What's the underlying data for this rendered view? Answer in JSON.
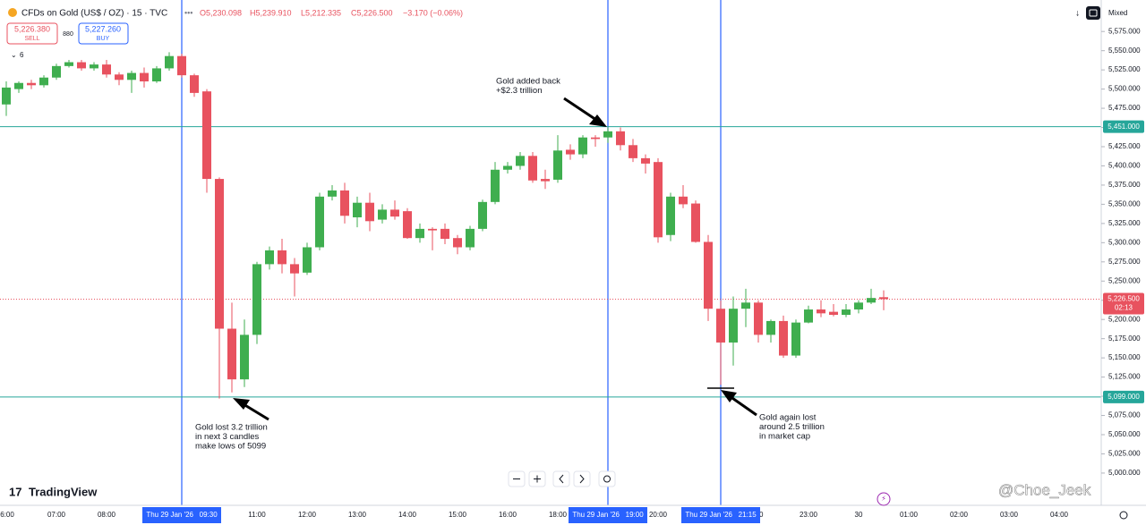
{
  "header": {
    "symbol": "CFDs on Gold (US$ / OZ) · 15 · TVC",
    "open": "O5,230.098",
    "high": "H5,239.910",
    "low": "L5,212.335",
    "close": "C5,226.500",
    "change": "−3.170 (−0.06%)",
    "sell_price": "5,226.380",
    "sell": "SELL",
    "spread": "880",
    "buy_price": "5,227.260",
    "buy": "BUY",
    "indicators": "6",
    "mode": "Mixed",
    "logo": "TradingView",
    "watermark": "@Choe_Jeek"
  },
  "chart_data": {
    "type": "candlestick",
    "up_color": "#3fae4f",
    "down_color": "#e8525f",
    "series": {
      "open": [
        5480,
        5500,
        5508,
        5505,
        5515,
        5530,
        5535,
        5527,
        5532,
        5519,
        5512,
        5521,
        5510,
        5527,
        5543,
        5518,
        5497,
        5383,
        5188,
        5122,
        5180,
        5272,
        5290,
        5272,
        5261,
        5294,
        5360,
        5368,
        5333,
        5352,
        5330,
        5343,
        5341,
        5306,
        5318,
        5318,
        5306,
        5294,
        5318,
        5353,
        5395,
        5400,
        5413,
        5383,
        5382,
        5421,
        5415,
        5437,
        5437,
        5445,
        5427,
        5410,
        5405,
        5310,
        5360,
        5351,
        5301,
        5214,
        5170,
        5214,
        5222,
        5180,
        5198,
        5153,
        5196,
        5213,
        5210,
        5206,
        5213,
        5222,
        5229
      ],
      "high": [
        5510,
        5510,
        5512,
        5518,
        5533,
        5538,
        5538,
        5535,
        5538,
        5522,
        5524,
        5528,
        5530,
        5548,
        5546,
        5520,
        5500,
        5385,
        5222,
        5200,
        5275,
        5295,
        5305,
        5280,
        5300,
        5365,
        5375,
        5378,
        5360,
        5365,
        5350,
        5355,
        5345,
        5325,
        5320,
        5325,
        5310,
        5322,
        5356,
        5405,
        5405,
        5418,
        5418,
        5395,
        5440,
        5428,
        5440,
        5440,
        5450,
        5450,
        5435,
        5415,
        5410,
        5365,
        5375,
        5355,
        5310,
        5225,
        5230,
        5240,
        5225,
        5200,
        5205,
        5200,
        5218,
        5225,
        5220,
        5220,
        5225,
        5240,
        5238
      ],
      "low": [
        5465,
        5495,
        5500,
        5502,
        5512,
        5528,
        5524,
        5524,
        5515,
        5505,
        5495,
        5502,
        5508,
        5524,
        5515,
        5490,
        5365,
        5097,
        5105,
        5112,
        5168,
        5265,
        5260,
        5230,
        5258,
        5290,
        5355,
        5325,
        5320,
        5315,
        5325,
        5330,
        5305,
        5300,
        5290,
        5298,
        5285,
        5290,
        5315,
        5350,
        5390,
        5395,
        5378,
        5370,
        5378,
        5408,
        5410,
        5425,
        5430,
        5420,
        5405,
        5390,
        5300,
        5302,
        5345,
        5300,
        5198,
        5115,
        5140,
        5190,
        5170,
        5170,
        5150,
        5150,
        5195,
        5203,
        5204,
        5203,
        5208,
        5220,
        5212
      ],
      "close": [
        5502,
        5508,
        5505,
        5515,
        5530,
        5535,
        5527,
        5532,
        5519,
        5512,
        5521,
        5510,
        5527,
        5543,
        5518,
        5495,
        5383,
        5188,
        5122,
        5180,
        5272,
        5290,
        5272,
        5260,
        5294,
        5360,
        5368,
        5335,
        5352,
        5328,
        5343,
        5334,
        5306,
        5318,
        5316,
        5305,
        5294,
        5318,
        5353,
        5395,
        5400,
        5413,
        5381,
        5380,
        5420,
        5415,
        5437,
        5435,
        5445,
        5427,
        5410,
        5403,
        5307,
        5360,
        5350,
        5301,
        5214,
        5170,
        5214,
        5222,
        5180,
        5198,
        5153,
        5196,
        5213,
        5208,
        5206,
        5213,
        5222,
        5228,
        5226.5
      ]
    },
    "ylim": [
      4958,
      5616
    ],
    "yticks": [
      {
        "value": 5000,
        "label": "5,000.000"
      },
      {
        "value": 5025,
        "label": "5,025.000"
      },
      {
        "value": 5050,
        "label": "5,050.000"
      },
      {
        "value": 5075,
        "label": "5,075.000"
      },
      {
        "value": 5100,
        "label": "5,100.000"
      },
      {
        "value": 5125,
        "label": "5,125.000"
      },
      {
        "value": 5150,
        "label": "5,150.000"
      },
      {
        "value": 5175,
        "label": "5,175.000"
      },
      {
        "value": 5200,
        "label": "5,200.000"
      },
      {
        "value": 5225,
        "label": "5,225.000"
      },
      {
        "value": 5250,
        "label": "5,250.000"
      },
      {
        "value": 5275,
        "label": "5,275.000"
      },
      {
        "value": 5300,
        "label": "5,300.000"
      },
      {
        "value": 5325,
        "label": "5,325.000"
      },
      {
        "value": 5350,
        "label": "5,350.000"
      },
      {
        "value": 5375,
        "label": "5,375.000"
      },
      {
        "value": 5400,
        "label": "5,400.000"
      },
      {
        "value": 5425,
        "label": "5,425.000"
      },
      {
        "value": 5450,
        "label": "5,450.000"
      },
      {
        "value": 5475,
        "label": "5,475.000"
      },
      {
        "value": 5500,
        "label": "5,500.000"
      },
      {
        "value": 5525,
        "label": "5,525.000"
      },
      {
        "value": 5550,
        "label": "5,550.000"
      },
      {
        "value": 5575,
        "label": "5,575.000"
      }
    ],
    "xticks": [
      "6:00",
      "07:00",
      "08:00",
      "11:00",
      "12:00",
      "13:00",
      "14:00",
      "15:00",
      "16:00",
      "18:00",
      "20:00",
      "00",
      "23:00",
      "30",
      "01:00",
      "02:00",
      "03:00",
      "04:00"
    ],
    "vlines": [
      "Thu 29 Jan '26   09:30",
      "Thu 29 Jan '26   19:00",
      "Thu 29 Jan '26   21:15"
    ],
    "hlines": [
      {
        "value": 5451,
        "label": "5,451.000"
      },
      {
        "value": 5099,
        "label": "5,099.000"
      }
    ],
    "price_line": {
      "value": 5226.5,
      "label": "5,226.500",
      "countdown": "02:13"
    },
    "annotations": [
      [
        "Gold lost 3.2 trillion",
        "in next 3 candles",
        "make lows of 5099"
      ],
      [
        "Gold added back",
        "+$2.3 trillion"
      ],
      [
        "Gold again lost",
        "around 2.5 trillion",
        "in market cap"
      ]
    ]
  }
}
